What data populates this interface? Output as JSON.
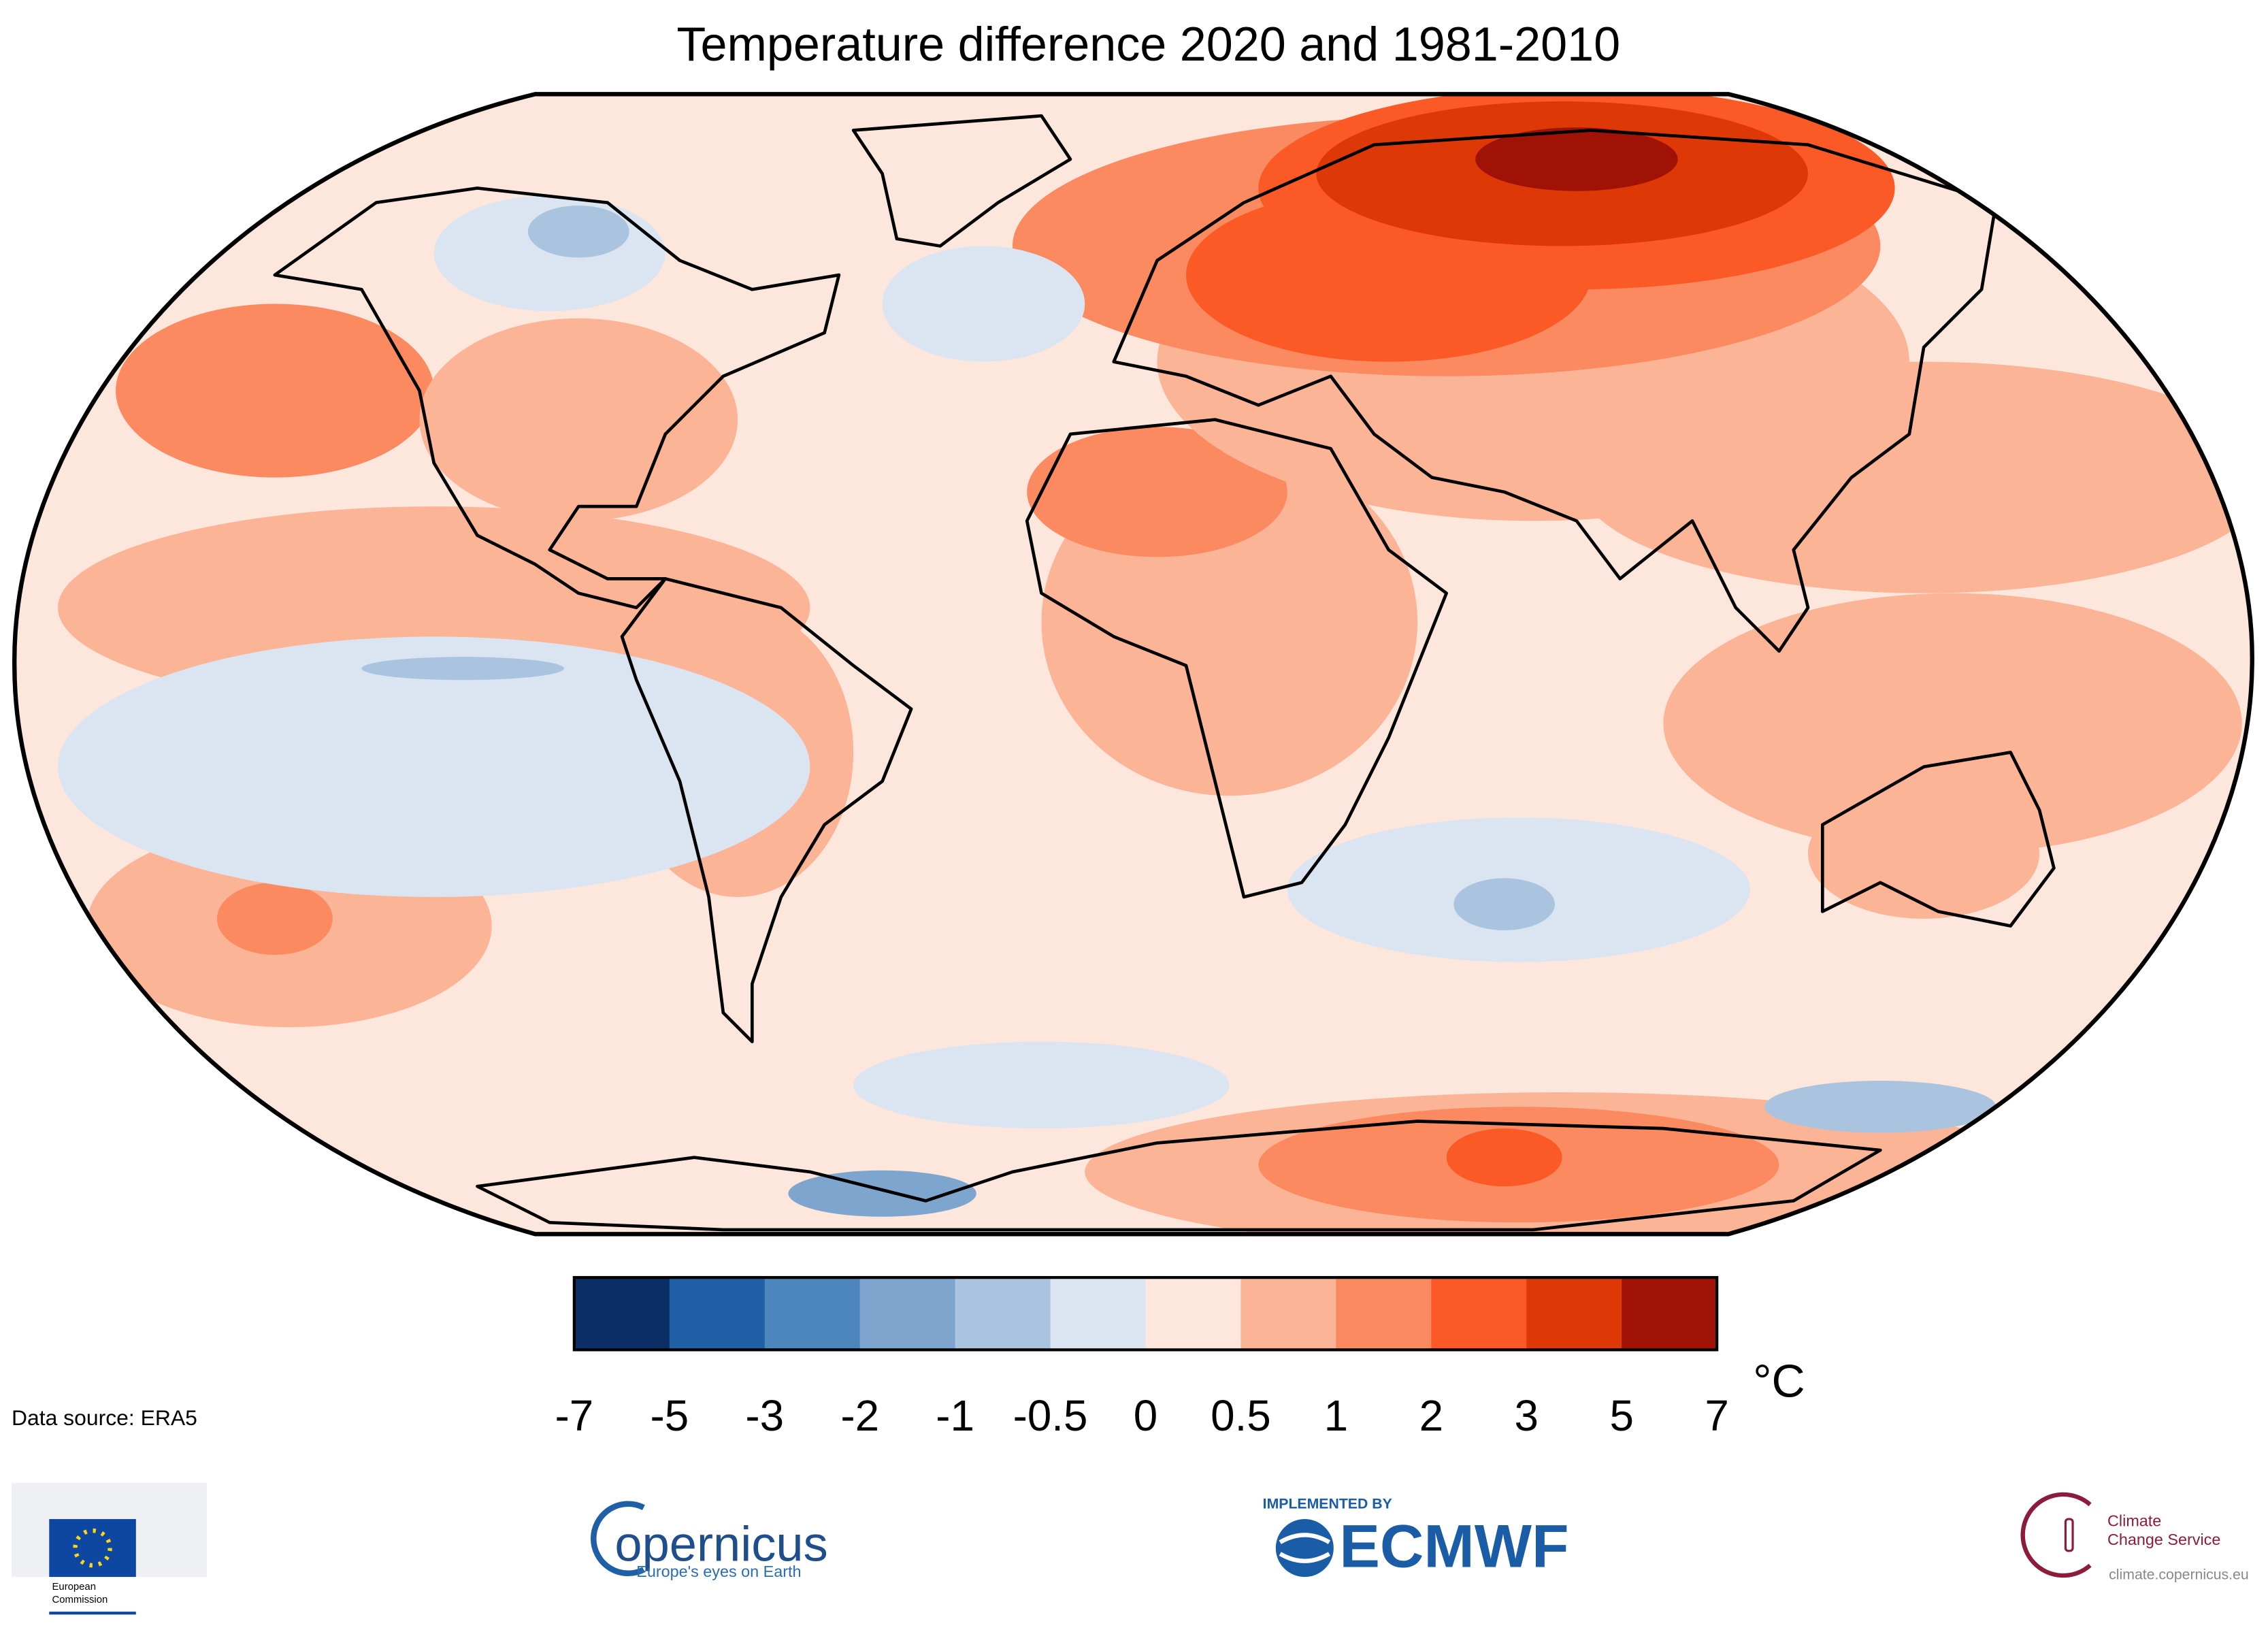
{
  "title": "Temperature difference 2020 and 1981-2010",
  "colorbar": {
    "colors": [
      "#0b2e66",
      "#1f5fa6",
      "#4d86bd",
      "#7ea5cd",
      "#aac4e0",
      "#dbe5f1",
      "#fde6dc",
      "#fcb496",
      "#fb8a61",
      "#fb5a26",
      "#df3807",
      "#a01205"
    ],
    "ticks": [
      "-7",
      "-5",
      "-3",
      "-2",
      "-1",
      "-0.5",
      "0",
      "0.5",
      "1",
      "2",
      "3",
      "5",
      "7"
    ],
    "unit": "°C"
  },
  "source": "Data source: ERA5",
  "logos": {
    "ec": [
      "European",
      "Commission"
    ],
    "copernicus": {
      "name": "opernicus",
      "tagline": "Europe's eyes on Earth"
    },
    "ecmwf": {
      "top": "IMPLEMENTED BY",
      "name": "ECMWF"
    },
    "c3s": {
      "name": [
        "Climate",
        "Change Service"
      ],
      "url": "climate.copernicus.eu"
    }
  }
}
